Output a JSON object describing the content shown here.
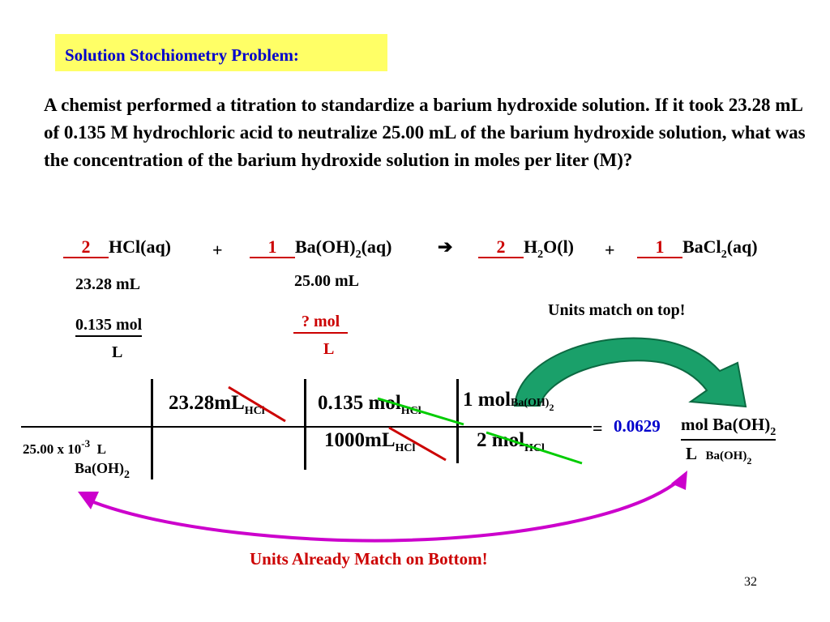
{
  "title": "Solution Stochiometry Problem:",
  "problem_text": "A chemist performed a titration to standardize a barium hydroxide solution. If it took 23.28 mL of 0.135 M hydrochloric acid to neutralize 25.00 mL of the barium hydroxide solution, what was the concentration of the barium hydroxide solution in moles per liter (M)?",
  "equation": {
    "coef1": "2",
    "sp1": "HCl(aq)",
    "plus": "+",
    "coef2": "1",
    "sp2a": "Ba(OH)",
    "sp2sub": "2",
    "sp2b": "(aq)",
    "arrow": "➔",
    "coef3": "2",
    "sp3a": "H",
    "sp3sub": "2",
    "sp3b": "O(l)",
    "coef4": "1",
    "sp4a": "BaCl",
    "sp4sub": "2",
    "sp4b": "(aq)"
  },
  "givens": {
    "hcl_volume": "23.28 mL",
    "hcl_conc_top": "0.135 mol",
    "hcl_conc_bottom": "L",
    "baoh_volume": "25.00 mL",
    "baoh_conc_top": "? mol",
    "baoh_conc_bottom": "L"
  },
  "note_top": "Units match on top!",
  "note_bottom": "Units  Already Match on Bottom!",
  "calc": {
    "denom_value": "25.00 x 10",
    "denom_exp": "-3",
    "denom_unit": "L",
    "denom_species": "Ba(OH)",
    "denom_species_sub": "2",
    "t1_num": "23.28",
    "t1_unit": "mL",
    "t1_sub": "HCl",
    "t2_num": "0.135",
    "t2_unit": "mol",
    "t2_sub": "HCl",
    "t2_den_num": "1000",
    "t2_den_unit": "mL",
    "t2_den_sub": "HCl",
    "t3_num": "1",
    "t3_unit": "mol",
    "t3_sub": "Ba(OH)",
    "t3_sub2": "2",
    "t3_den_num": "2",
    "t3_den_unit": "mol",
    "t3_den_sub": "HCl",
    "equals": "=",
    "result": "0.0629",
    "result_unit_top": "mol Ba(OH)",
    "result_unit_top_sub": "2",
    "result_unit_bottom": "L",
    "result_unit_bottom_species": "Ba(OH)",
    "result_unit_bottom_sub": "2"
  },
  "slide_number": "32",
  "colors": {
    "title_bg": "#ffff66",
    "title_text": "#0000cc",
    "red": "#cc0000",
    "green": "#00a000",
    "arrow_green": "#1aa06a",
    "arc_purple": "#cc00cc"
  }
}
